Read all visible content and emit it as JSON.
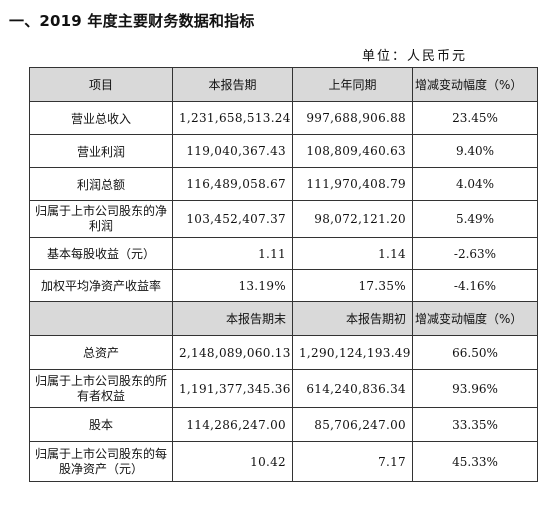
{
  "title": "一、2019 年度主要财务数据和指标",
  "unit": "单位：人民币元",
  "header1": [
    "项目",
    "本报告期",
    "上年同期",
    "增减变动幅度（%）"
  ],
  "rows1": [
    {
      "label": "营业总收入",
      "cur": "1,231,658,513.24",
      "prev": "997,688,906.88",
      "chg": "23.45%"
    },
    {
      "label": "营业利润",
      "cur": "119,040,367.43",
      "prev": "108,809,460.63",
      "chg": "9.40%"
    },
    {
      "label": "利润总额",
      "cur": "116,489,058.67",
      "prev": "111,970,408.79",
      "chg": "4.04%"
    },
    {
      "label": "归属于上市公司股东的净利润",
      "cur": "103,452,407.37",
      "prev": "98,072,121.20",
      "chg": "5.49%"
    },
    {
      "label": "基本每股收益（元）",
      "cur": "1.11",
      "prev": "1.14",
      "chg": "-2.63%"
    },
    {
      "label": "加权平均净资产收益率",
      "cur": "13.19%",
      "prev": "17.35%",
      "chg": "-4.16%"
    }
  ],
  "header2": [
    "",
    "本报告期末",
    "本报告期初",
    "增减变动幅度（%）"
  ],
  "rows2": [
    {
      "label": "总资产",
      "cur": "2,148,089,060.13",
      "prev": "1,290,124,193.49",
      "chg": "66.50%"
    },
    {
      "label": "归属于上市公司股东的所有者权益",
      "cur": "1,191,377,345.36",
      "prev": "614,240,836.34",
      "chg": "93.96%"
    },
    {
      "label": "股本",
      "cur": "114,286,247.00",
      "prev": "85,706,247.00",
      "chg": "33.35%"
    },
    {
      "label": "归属于上市公司股东的每股净资产（元）",
      "cur": "10.42",
      "prev": "7.17",
      "chg": "45.33%"
    }
  ]
}
